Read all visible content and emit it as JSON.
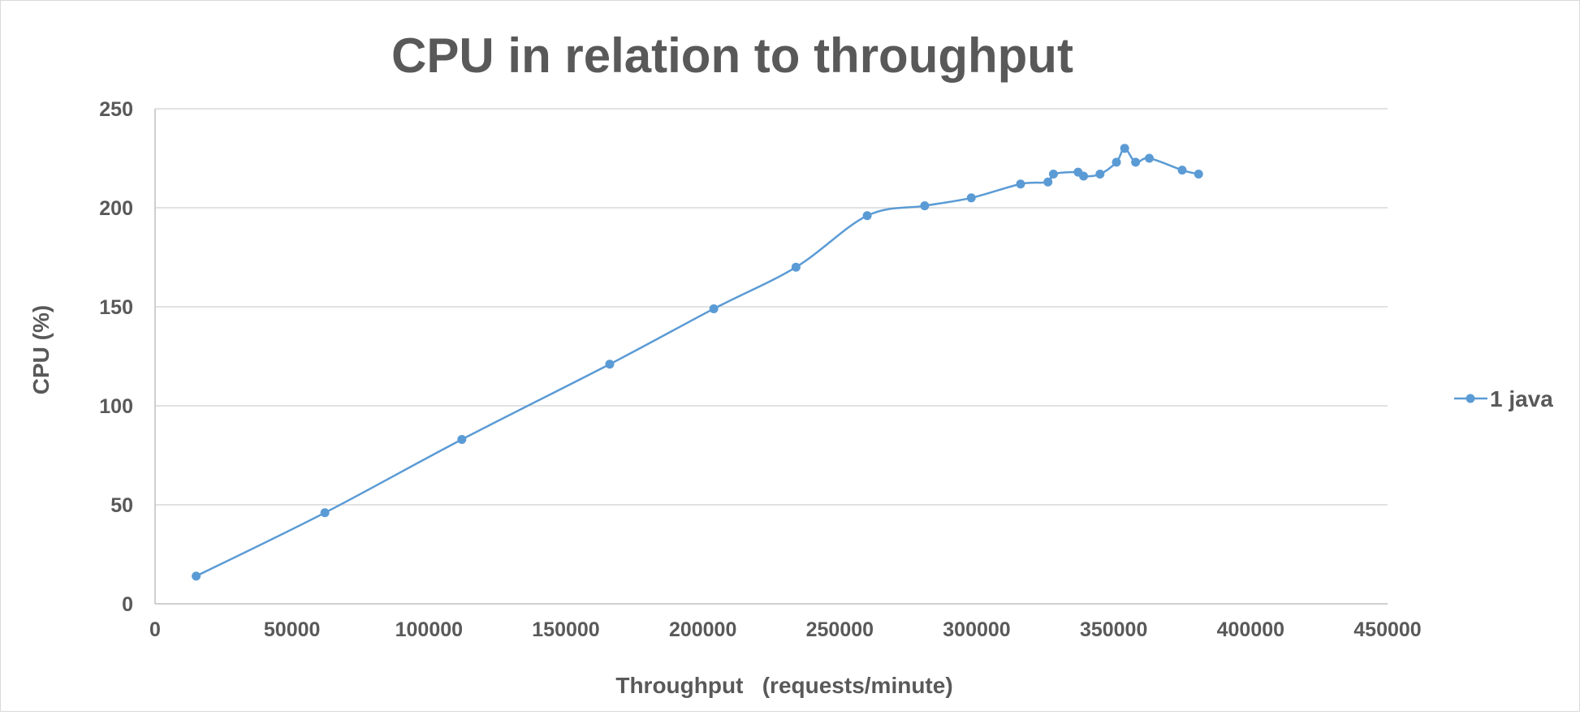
{
  "chart_data": {
    "type": "scatter",
    "title": "CPU in relation to throughput",
    "xlabel": "Throughput   (requests/minute)",
    "ylabel": "CPU (%)",
    "xlim": [
      0,
      450000
    ],
    "ylim": [
      0,
      250
    ],
    "x_ticks": [
      0,
      50000,
      100000,
      150000,
      200000,
      250000,
      300000,
      350000,
      400000,
      450000
    ],
    "y_ticks": [
      0,
      50,
      100,
      150,
      200,
      250
    ],
    "grid": "horizontal",
    "smooth_lines": true,
    "legend_position": "right",
    "series": [
      {
        "name": "1 java",
        "color": "#5b9bd5",
        "marker": "circle",
        "points": [
          [
            15000,
            14
          ],
          [
            62000,
            46
          ],
          [
            112000,
            83
          ],
          [
            166000,
            121
          ],
          [
            204000,
            149
          ],
          [
            234000,
            170
          ],
          [
            260000,
            196
          ],
          [
            281000,
            201
          ],
          [
            298000,
            205
          ],
          [
            316000,
            212
          ],
          [
            326000,
            213
          ],
          [
            328000,
            217
          ],
          [
            337000,
            218
          ],
          [
            339000,
            216
          ],
          [
            345000,
            217
          ],
          [
            351000,
            223
          ],
          [
            354000,
            230
          ],
          [
            358000,
            223
          ],
          [
            363000,
            225
          ],
          [
            375000,
            219
          ],
          [
            381000,
            217
          ]
        ]
      }
    ]
  }
}
